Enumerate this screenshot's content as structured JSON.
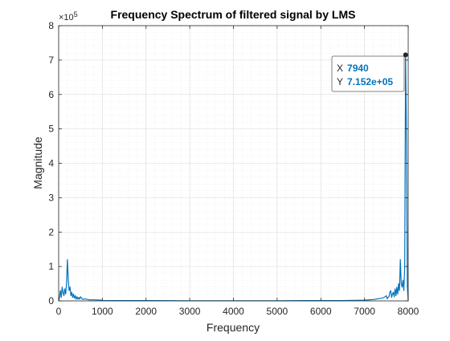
{
  "chart_data": {
    "type": "line",
    "title": "Frequency Spectrum of filtered signal by LMS",
    "xlabel": "Frequency",
    "ylabel": "Magnitude",
    "xlim": [
      0,
      8000
    ],
    "ylim": [
      0,
      8
    ],
    "yscale_exponent_label": "×10",
    "yscale_exponent_power": "5",
    "xticks": [
      "0",
      "1000",
      "2000",
      "3000",
      "4000",
      "5000",
      "6000",
      "7000",
      "8000"
    ],
    "yticks": [
      "0",
      "1",
      "2",
      "3",
      "4",
      "5",
      "6",
      "7",
      "8"
    ],
    "grid": "major and minor",
    "series": [
      {
        "color": "#0072bd",
        "x": [
          0,
          20,
          40,
          60,
          80,
          100,
          120,
          140,
          160,
          180,
          200,
          220,
          240,
          260,
          280,
          300,
          320,
          340,
          360,
          380,
          400,
          420,
          440,
          460,
          480,
          500,
          550,
          600,
          700,
          800,
          1000,
          1500,
          2000,
          3000,
          4000,
          5000,
          6000,
          6500,
          7000,
          7200,
          7300,
          7400,
          7450,
          7500,
          7520,
          7540,
          7560,
          7580,
          7600,
          7620,
          7640,
          7660,
          7680,
          7700,
          7720,
          7740,
          7760,
          7780,
          7800,
          7820,
          7840,
          7860,
          7880,
          7900,
          7920,
          7940,
          7960,
          7980,
          8000
        ],
        "y": [
          0,
          0.1,
          0.3,
          0.1,
          0.4,
          0.25,
          0.15,
          0.35,
          0.2,
          0.5,
          1.2,
          0.6,
          0.3,
          0.4,
          0.15,
          0.25,
          0.1,
          0.2,
          0.08,
          0.15,
          0.05,
          0.12,
          0.05,
          0.1,
          0.05,
          0.12,
          0.04,
          0.06,
          0.03,
          0.03,
          0.02,
          0.01,
          0.01,
          0.005,
          0.005,
          0.005,
          0.01,
          0.01,
          0.02,
          0.04,
          0.06,
          0.08,
          0.1,
          0.15,
          0.06,
          0.1,
          0.12,
          0.25,
          0.3,
          0.1,
          0.2,
          0.25,
          0.12,
          0.35,
          0.15,
          0.4,
          0.2,
          0.5,
          0.3,
          1.2,
          0.5,
          0.4,
          0.6,
          0.3,
          1.0,
          7.152,
          4.7,
          0.4,
          0
        ]
      }
    ],
    "datatip": {
      "x_label": "X",
      "x_value": "7940",
      "y_label": "Y",
      "y_value": "7.152e+05",
      "x": 7940,
      "y": 7.152
    }
  }
}
